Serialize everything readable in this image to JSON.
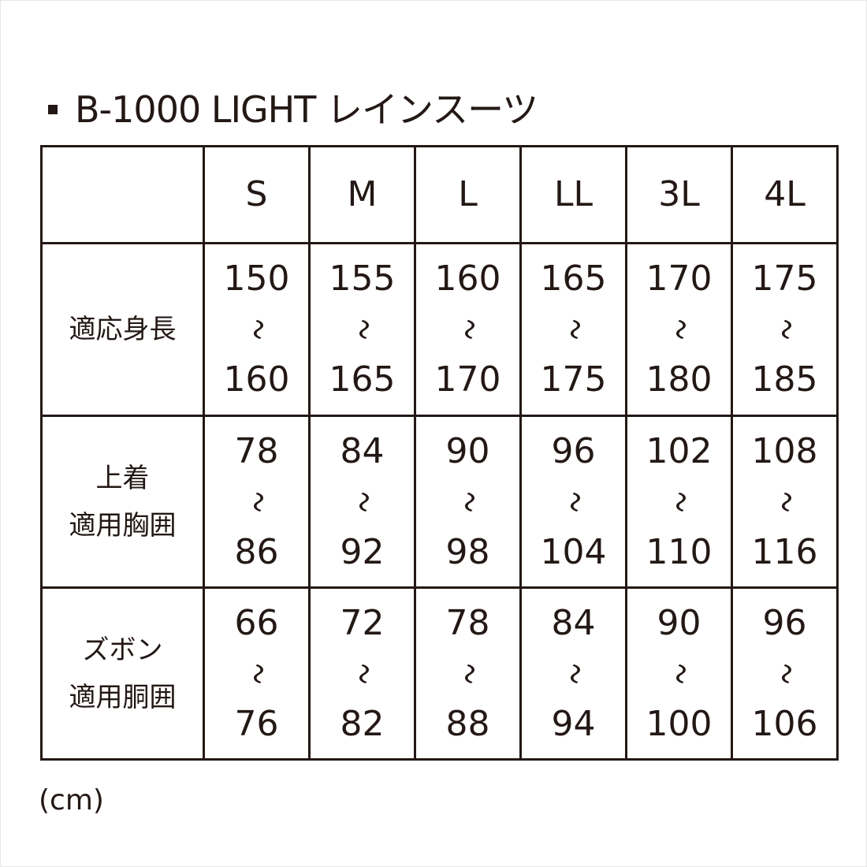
{
  "title": "B-1000 LIGHT レインスーツ",
  "sizes": [
    "S",
    "M",
    "L",
    "LL",
    "3L",
    "4L"
  ],
  "range_mark": "〜",
  "rows": [
    {
      "label_lines": [
        "適応身長"
      ],
      "ranges": [
        [
          "150",
          "160"
        ],
        [
          "155",
          "165"
        ],
        [
          "160",
          "170"
        ],
        [
          "165",
          "175"
        ],
        [
          "170",
          "180"
        ],
        [
          "175",
          "185"
        ]
      ]
    },
    {
      "label_lines": [
        "上着",
        "適用胸囲"
      ],
      "ranges": [
        [
          "78",
          "86"
        ],
        [
          "84",
          "92"
        ],
        [
          "90",
          "98"
        ],
        [
          "96",
          "104"
        ],
        [
          "102",
          "110"
        ],
        [
          "108",
          "116"
        ]
      ]
    },
    {
      "label_lines": [
        "ズボン",
        "適用胴囲"
      ],
      "ranges": [
        [
          "66",
          "76"
        ],
        [
          "72",
          "82"
        ],
        [
          "78",
          "88"
        ],
        [
          "84",
          "94"
        ],
        [
          "90",
          "100"
        ],
        [
          "96",
          "106"
        ]
      ]
    }
  ],
  "unit": "(cm)",
  "colors": {
    "ink": "#231815"
  }
}
